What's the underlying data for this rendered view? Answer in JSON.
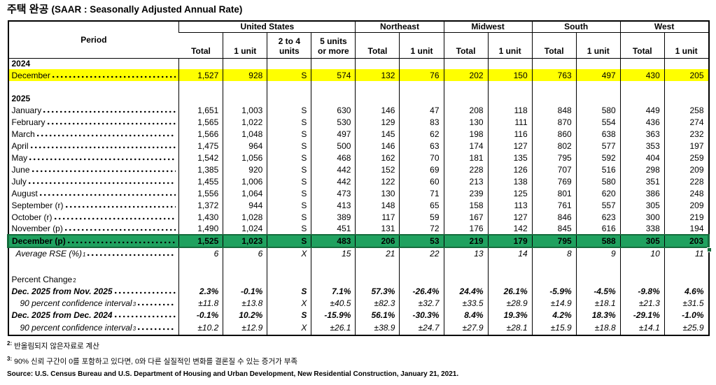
{
  "title": {
    "korean": "주택 완공",
    "english": "(SAAR : Seasonally Adjusted Annual Rate)"
  },
  "colors": {
    "highlight_yellow": "#FFFF00",
    "highlight_green": "#1FA15F",
    "selection_border": "#156C3D"
  },
  "table": {
    "period_header": "Period",
    "groups": [
      {
        "label": "United States",
        "cols": [
          "Total",
          "1 unit",
          "2 to 4\nunits",
          "5 units\nor more"
        ]
      },
      {
        "label": "Northeast",
        "cols": [
          "Total",
          "1 unit"
        ]
      },
      {
        "label": "Midwest",
        "cols": [
          "Total",
          "1 unit"
        ]
      },
      {
        "label": "South",
        "cols": [
          "Total",
          "1 unit"
        ]
      },
      {
        "label": "West",
        "cols": [
          "Total",
          "1 unit"
        ]
      }
    ],
    "rows": [
      {
        "type": "year",
        "label": "2024"
      },
      {
        "type": "data",
        "label": "December",
        "leader": true,
        "highlight": "yellow",
        "values": [
          "1,527",
          "928",
          "S",
          "574",
          "132",
          "76",
          "202",
          "150",
          "763",
          "497",
          "430",
          "205"
        ]
      },
      {
        "type": "blank"
      },
      {
        "type": "year",
        "label": "2025"
      },
      {
        "type": "data",
        "label": "January",
        "leader": true,
        "values": [
          "1,651",
          "1,003",
          "S",
          "630",
          "146",
          "47",
          "208",
          "118",
          "848",
          "580",
          "449",
          "258"
        ]
      },
      {
        "type": "data",
        "label": "February",
        "leader": true,
        "values": [
          "1,565",
          "1,022",
          "S",
          "530",
          "129",
          "83",
          "130",
          "111",
          "870",
          "554",
          "436",
          "274"
        ]
      },
      {
        "type": "data",
        "label": "March",
        "leader": true,
        "values": [
          "1,566",
          "1,048",
          "S",
          "497",
          "145",
          "62",
          "198",
          "116",
          "860",
          "638",
          "363",
          "232"
        ]
      },
      {
        "type": "data",
        "label": "April",
        "leader": true,
        "values": [
          "1,475",
          "964",
          "S",
          "500",
          "146",
          "63",
          "174",
          "127",
          "802",
          "577",
          "353",
          "197"
        ]
      },
      {
        "type": "data",
        "label": "May",
        "leader": true,
        "values": [
          "1,542",
          "1,056",
          "S",
          "468",
          "162",
          "70",
          "181",
          "135",
          "795",
          "592",
          "404",
          "259"
        ]
      },
      {
        "type": "data",
        "label": "June",
        "leader": true,
        "values": [
          "1,385",
          "920",
          "S",
          "442",
          "152",
          "69",
          "228",
          "126",
          "707",
          "516",
          "298",
          "209"
        ]
      },
      {
        "type": "data",
        "label": "July",
        "leader": true,
        "values": [
          "1,455",
          "1,006",
          "S",
          "442",
          "122",
          "60",
          "213",
          "138",
          "769",
          "580",
          "351",
          "228"
        ]
      },
      {
        "type": "data",
        "label": "August",
        "leader": true,
        "values": [
          "1,556",
          "1,064",
          "S",
          "473",
          "130",
          "71",
          "239",
          "125",
          "801",
          "620",
          "386",
          "248"
        ]
      },
      {
        "type": "data",
        "label": "September (r)",
        "leader": true,
        "values": [
          "1,372",
          "944",
          "S",
          "413",
          "148",
          "65",
          "158",
          "113",
          "761",
          "557",
          "305",
          "209"
        ]
      },
      {
        "type": "data",
        "label": "October (r)",
        "leader": true,
        "values": [
          "1,430",
          "1,028",
          "S",
          "389",
          "117",
          "59",
          "167",
          "127",
          "846",
          "623",
          "300",
          "219"
        ]
      },
      {
        "type": "data",
        "label": "November (p)",
        "leader": true,
        "values": [
          "1,490",
          "1,024",
          "S",
          "451",
          "131",
          "72",
          "176",
          "142",
          "845",
          "616",
          "338",
          "194"
        ]
      },
      {
        "type": "data",
        "label": "December (p)",
        "leader": true,
        "highlight": "green",
        "values": [
          "1,525",
          "1,023",
          "S",
          "483",
          "206",
          "53",
          "219",
          "179",
          "795",
          "588",
          "305",
          "203"
        ]
      },
      {
        "type": "data",
        "label": "Average RSE (%)",
        "sup": "1",
        "leader": true,
        "emphasis": "i",
        "indent": 1,
        "values": [
          "6",
          "6",
          "X",
          "15",
          "21",
          "22",
          "13",
          "14",
          "8",
          "9",
          "10",
          "11"
        ]
      },
      {
        "type": "gap"
      },
      {
        "type": "label",
        "label": "Percent Change",
        "sup": "2"
      },
      {
        "type": "data",
        "label": "Dec. 2025 from Nov. 2025",
        "leader": true,
        "emphasis": "bi",
        "values": [
          "2.3%",
          "-0.1%",
          "S",
          "7.1%",
          "57.3%",
          "-26.4%",
          "24.4%",
          "26.1%",
          "-5.9%",
          "-4.5%",
          "-9.8%",
          "4.6%"
        ]
      },
      {
        "type": "data",
        "label": "90 percent confidence interval",
        "sup": "3",
        "leader": true,
        "emphasis": "i",
        "indent": 2,
        "values": [
          "±11.8",
          "±13.8",
          "X",
          "±40.5",
          "±82.3",
          "±32.7",
          "±33.5",
          "±28.9",
          "±14.9",
          "±18.1",
          "±21.3",
          "±31.5"
        ]
      },
      {
        "type": "data",
        "label": "Dec. 2025 from Dec. 2024",
        "leader": true,
        "emphasis": "bi",
        "values": [
          "-0.1%",
          "10.2%",
          "S",
          "-15.9%",
          "56.1%",
          "-30.3%",
          "8.4%",
          "19.3%",
          "4.2%",
          "18.3%",
          "-29.1%",
          "-1.0%"
        ]
      },
      {
        "type": "data",
        "label": "90 percent confidence interval",
        "sup": "3",
        "leader": true,
        "emphasis": "i",
        "indent": 2,
        "last": true,
        "values": [
          "±10.2",
          "±12.9",
          "X",
          "±26.1",
          "±38.9",
          "±24.7",
          "±27.9",
          "±28.1",
          "±15.9",
          "±18.8",
          "±14.1",
          "±25.9"
        ]
      }
    ]
  },
  "footnotes": [
    {
      "sup": "2:",
      "text": "반올림되지 않은자료로 계산"
    },
    {
      "sup": "3:",
      "text": "90% 신뢰 구간이 0를 포함하고 있다면, 0와 다른 실질적인 변화를 결론질 수 있는 증거가 부족"
    }
  ],
  "source": "Source: U.S. Census Bureau and U.S. Department of Housing and Urban Development, New Residential Construction, January 21, 2021."
}
